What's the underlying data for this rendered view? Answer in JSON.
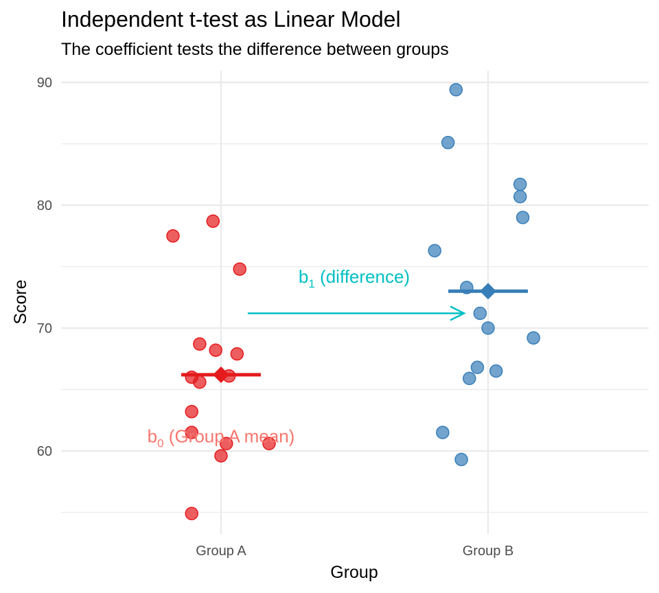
{
  "chart_data": {
    "type": "scatter",
    "title": "Independent t-test as Linear Model",
    "subtitle": "The coefficient tests the difference between groups",
    "xlabel": "Group",
    "ylabel": "Score",
    "categories": [
      "Group A",
      "Group B"
    ],
    "ylim": [
      53.5,
      91
    ],
    "yticks": [
      60,
      70,
      80,
      90
    ],
    "grid": true,
    "series": [
      {
        "category": "Group A",
        "color": "#E41A1C",
        "mean": 66.2,
        "points": [
          {
            "x": -0.18,
            "y": 77.5
          },
          {
            "x": -0.03,
            "y": 78.7
          },
          {
            "x": 0.07,
            "y": 74.8
          },
          {
            "x": -0.08,
            "y": 68.7
          },
          {
            "x": -0.02,
            "y": 68.2
          },
          {
            "x": 0.06,
            "y": 67.9
          },
          {
            "x": -0.11,
            "y": 66.0
          },
          {
            "x": 0.03,
            "y": 66.1
          },
          {
            "x": -0.08,
            "y": 65.6
          },
          {
            "x": -0.11,
            "y": 63.2
          },
          {
            "x": -0.11,
            "y": 61.5
          },
          {
            "x": 0.02,
            "y": 60.6
          },
          {
            "x": 0.18,
            "y": 60.6
          },
          {
            "x": 0.0,
            "y": 59.6
          },
          {
            "x": -0.11,
            "y": 54.9
          }
        ]
      },
      {
        "category": "Group B",
        "color": "#377EB8",
        "mean": 73.0,
        "points": [
          {
            "x": -0.12,
            "y": 89.4
          },
          {
            "x": -0.15,
            "y": 85.1
          },
          {
            "x": 0.12,
            "y": 81.7
          },
          {
            "x": 0.12,
            "y": 80.7
          },
          {
            "x": 0.13,
            "y": 79.0
          },
          {
            "x": -0.2,
            "y": 76.3
          },
          {
            "x": -0.08,
            "y": 73.3
          },
          {
            "x": -0.03,
            "y": 71.2
          },
          {
            "x": 0.0,
            "y": 70.0
          },
          {
            "x": 0.17,
            "y": 69.2
          },
          {
            "x": 0.03,
            "y": 66.5
          },
          {
            "x": -0.04,
            "y": 66.8
          },
          {
            "x": -0.07,
            "y": 65.9
          },
          {
            "x": -0.17,
            "y": 61.5
          },
          {
            "x": -0.1,
            "y": 59.3
          }
        ]
      }
    ],
    "annotations": {
      "b0": {
        "base": "b",
        "sub": "0",
        "rest": " (Group A mean)",
        "color": "#F8766D",
        "y": 61.2
      },
      "b1": {
        "base": "b",
        "sub": "1",
        "rest": " (difference)",
        "color": "#00BFC4",
        "y": 74.2
      },
      "arrow": {
        "color": "#00BFC4",
        "y": 71.2
      }
    }
  }
}
